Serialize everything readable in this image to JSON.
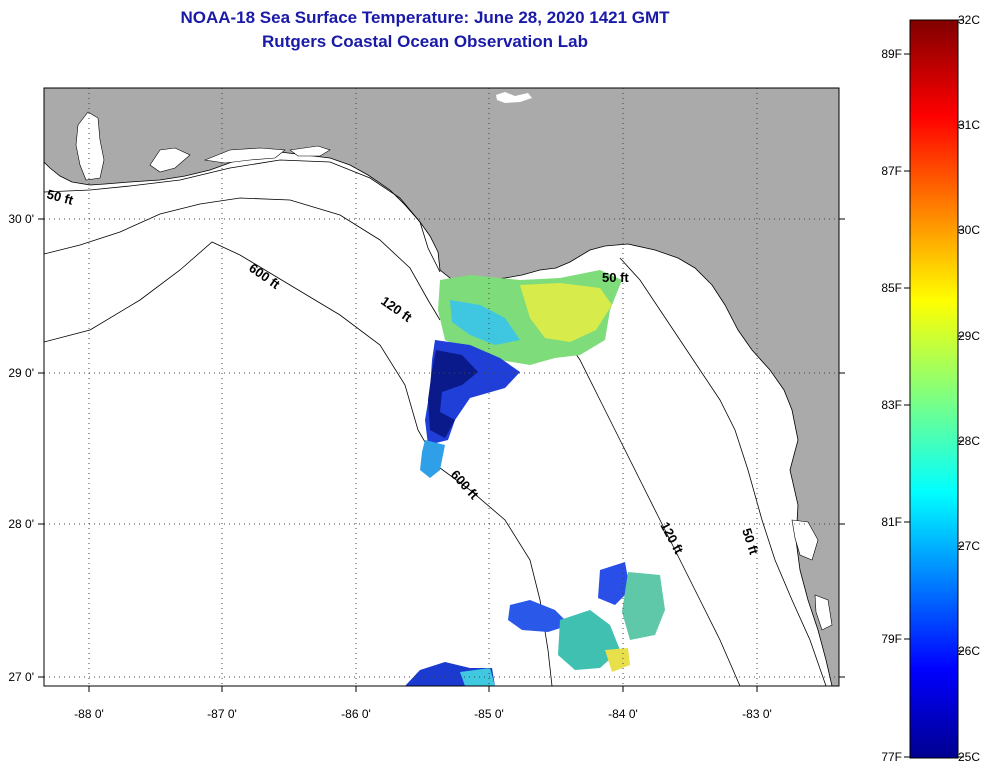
{
  "title": {
    "line1": "NOAA-18 Sea Surface Temperature:  June 28, 2020 1421 GMT",
    "line2": "Rutgers Coastal Ocean Observation Lab"
  },
  "map": {
    "land_color": "#aaaaaa",
    "water_color": "#ffffff",
    "lon_ticks": [
      "-88 0'",
      "-87 0'",
      "-86 0'",
      "-85 0'",
      "-84 0'",
      "-83 0'"
    ],
    "lat_ticks": [
      "30 0'",
      "29 0'",
      "28 0'",
      "27 0'"
    ],
    "contour_labels": [
      "50 ft",
      "600 ft",
      "120 ft",
      "50 ft",
      "600 ft",
      "120 ft",
      "50 ft"
    ]
  },
  "colorbar": {
    "celsius_labels": [
      "32C",
      "31C",
      "30C",
      "29C",
      "28C",
      "27C",
      "26C",
      "25C"
    ],
    "fahrenheit_labels": [
      "89F",
      "87F",
      "85F",
      "83F",
      "81F",
      "79F",
      "77F"
    ],
    "colormap": "jet",
    "min_c": 25,
    "max_c": 32
  }
}
